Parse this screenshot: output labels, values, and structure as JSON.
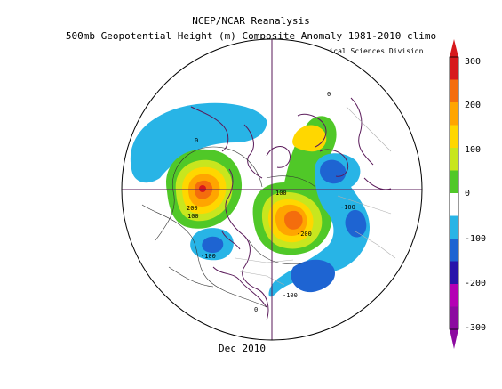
{
  "title_line1": "NCEP/NCAR Reanalysis",
  "title_line2": "500mb Geopotential Height (m) Composite Anomaly 1981-2010 climo",
  "credit": "NOAA/ESRL Physical Sciences Division",
  "period_label": "Dec 2010",
  "colorbar": {
    "ticks": [
      "300",
      "200",
      "100",
      "0",
      "-100",
      "-200",
      "-300"
    ],
    "colors": [
      "#d7191c",
      "#f46d0d",
      "#ffa500",
      "#ffd700",
      "#c8e61e",
      "#50c828",
      "#ffffff",
      "#28b4e6",
      "#1e64d2",
      "#2814aa",
      "#b400b4",
      "#8c0aa0"
    ]
  },
  "contour_labels": [
    "200",
    "100",
    "-100",
    "-100",
    "100",
    "-100",
    "-200",
    "-100",
    "0",
    "0",
    "0"
  ]
}
